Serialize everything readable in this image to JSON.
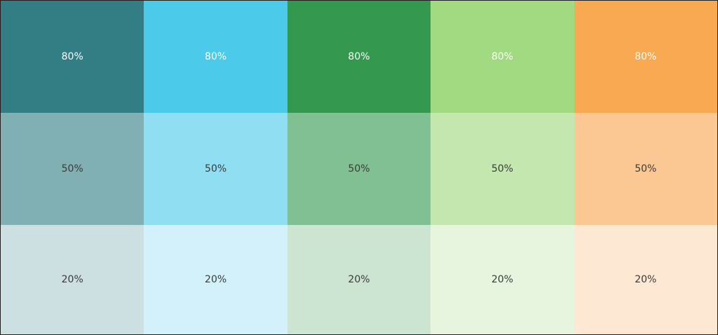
{
  "colors": [
    {
      "name": "teal",
      "shades": [
        {
          "label": "80%",
          "hex": "#337e85",
          "text": "#ffffff"
        },
        {
          "label": "50%",
          "hex": "#80b0b4",
          "text": "#3a3a3a"
        },
        {
          "label": "20%",
          "hex": "#ccdfe1",
          "text": "#3a3a3a"
        }
      ]
    },
    {
      "name": "sky",
      "shades": [
        {
          "label": "80%",
          "hex": "#4ccae9",
          "text": "#ffffff"
        },
        {
          "label": "50%",
          "hex": "#8fdef1",
          "text": "#3a3a3a"
        },
        {
          "label": "20%",
          "hex": "#d2f1fa",
          "text": "#3a3a3a"
        }
      ]
    },
    {
      "name": "green",
      "shades": [
        {
          "label": "80%",
          "hex": "#35984f",
          "text": "#ffffff"
        },
        {
          "label": "50%",
          "hex": "#80c092",
          "text": "#3a3a3a"
        },
        {
          "label": "20%",
          "hex": "#cce5d3",
          "text": "#3a3a3a"
        }
      ]
    },
    {
      "name": "lime",
      "shades": [
        {
          "label": "80%",
          "hex": "#a1da80",
          "text": "#ffffff"
        },
        {
          "label": "50%",
          "hex": "#c4e7b0",
          "text": "#3a3a3a"
        },
        {
          "label": "20%",
          "hex": "#e7f5df",
          "text": "#3a3a3a"
        }
      ]
    },
    {
      "name": "orange",
      "shades": [
        {
          "label": "80%",
          "hex": "#f9a952",
          "text": "#ffffff"
        },
        {
          "label": "50%",
          "hex": "#fbc893",
          "text": "#3a3a3a"
        },
        {
          "label": "20%",
          "hex": "#fde8d4",
          "text": "#3a3a3a"
        }
      ]
    }
  ]
}
